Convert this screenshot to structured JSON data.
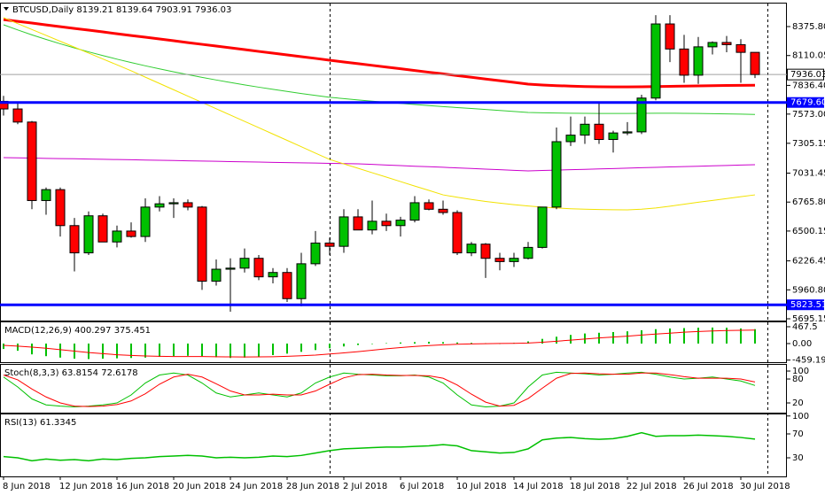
{
  "chart_data": [
    {
      "type": "candlestick",
      "title": "BTCUSD,Daily",
      "categories": [
        "8 Jun 2018",
        null,
        null,
        null,
        "12 Jun 2018",
        null,
        null,
        null,
        "16 Jun 2018",
        null,
        null,
        null,
        "20 Jun 2018",
        null,
        null,
        null,
        "24 Jun 2018",
        null,
        null,
        null,
        "28 Jun 2018",
        null,
        null,
        null,
        "2 Jul 2018",
        null,
        null,
        null,
        "6 Jul 2018",
        null,
        null,
        null,
        "10 Jul 2018",
        null,
        null,
        null,
        "14 Jul 2018",
        null,
        null,
        null,
        "18 Jul 2018",
        null,
        null,
        null,
        "22 Jul 2018",
        null,
        null,
        null,
        "26 Jul 2018",
        null,
        null,
        null,
        "30 Jul 2018",
        null
      ],
      "ohlc": {
        "open": [
          7690,
          7620,
          7500,
          6780,
          6880,
          6550,
          6300,
          6640,
          6400,
          6500,
          6450,
          6720,
          6750,
          6760,
          6720,
          6040,
          6150,
          6160,
          6250,
          6080,
          6120,
          5880,
          6200,
          6390,
          6360,
          6630,
          6510,
          6590,
          6550,
          6600,
          6760,
          6700,
          6670,
          6300,
          6380,
          6250,
          6220,
          6250,
          6350,
          6720,
          7320,
          7380,
          7480,
          7340,
          7400,
          7410,
          7720,
          8400,
          8170,
          7930,
          8190,
          8230,
          8210,
          8139.21
        ],
        "high": [
          7740,
          7690,
          7510,
          6900,
          6900,
          6620,
          6680,
          6660,
          6550,
          6580,
          6800,
          6820,
          6800,
          6790,
          6730,
          6240,
          6250,
          6340,
          6280,
          6160,
          6160,
          6300,
          6500,
          6440,
          6700,
          6700,
          6780,
          6660,
          6630,
          6820,
          6790,
          6780,
          6690,
          6400,
          6390,
          6300,
          6300,
          6400,
          6700,
          7450,
          7550,
          7550,
          7670,
          7420,
          7500,
          7750,
          8480,
          8480,
          8300,
          8280,
          8240,
          8290,
          8260,
          8139.64
        ],
        "low": [
          7560,
          7480,
          6700,
          6650,
          6450,
          6130,
          6280,
          6400,
          6350,
          6440,
          6400,
          6680,
          6620,
          6690,
          5960,
          6000,
          5760,
          6120,
          6050,
          6020,
          5850,
          5810,
          6180,
          6280,
          6300,
          6560,
          6470,
          6500,
          6450,
          6580,
          6690,
          6650,
          6280,
          6270,
          6070,
          6140,
          6170,
          6240,
          6340,
          6700,
          7280,
          7300,
          7300,
          7220,
          7380,
          7390,
          7700,
          8050,
          7860,
          7850,
          8120,
          8140,
          7860,
          7903.91
        ],
        "close": [
          7620,
          7500,
          6780,
          6880,
          6550,
          6300,
          6640,
          6400,
          6500,
          6450,
          6720,
          6750,
          6760,
          6720,
          6040,
          6150,
          6160,
          6250,
          6080,
          6120,
          5880,
          6200,
          6390,
          6360,
          6630,
          6510,
          6590,
          6550,
          6600,
          6760,
          6700,
          6670,
          6300,
          6380,
          6250,
          6220,
          6250,
          6350,
          6720,
          7320,
          7380,
          7480,
          7340,
          7400,
          7410,
          7720,
          8400,
          8170,
          7930,
          8190,
          8230,
          8210,
          8139.21,
          7936.03
        ]
      },
      "up_color": "#00c000",
      "down_color": "#ff0000",
      "lines": [
        {
          "color": "#ff0000",
          "values": [
            8440,
            8424,
            8408,
            8391,
            8375,
            8359,
            8343,
            8327,
            8310,
            8294,
            8278,
            8262,
            8246,
            8229,
            8213,
            8197,
            8181,
            8165,
            8148,
            8132,
            8116,
            8100,
            8084,
            8067,
            8051,
            8036,
            8020,
            8004,
            7989,
            7973,
            7957,
            7942,
            7926,
            7911,
            7895,
            7879,
            7864,
            7848,
            7840,
            7834,
            7830,
            7826,
            7824,
            7823,
            7823,
            7824,
            7826,
            7828,
            7830,
            7832,
            7834,
            7836,
            7837,
            7838
          ]
        },
        {
          "color": "#32cd32",
          "values": [
            8392,
            8345,
            8300,
            8258,
            8218,
            8180,
            8144,
            8110,
            8077,
            8046,
            8016,
            7988,
            7961,
            7935,
            7910,
            7886,
            7863,
            7841,
            7820,
            7800,
            7781,
            7762,
            7744,
            7727,
            7715,
            7703,
            7692,
            7681,
            7671,
            7661,
            7651,
            7642,
            7633,
            7624,
            7615,
            7606,
            7597,
            7588,
            7585,
            7583,
            7581,
            7580,
            7579,
            7579,
            7579,
            7580,
            7581,
            7581,
            7580,
            7579,
            7577,
            7575,
            7573,
            7570
          ]
        },
        {
          "color": "#cc00cc",
          "values": [
            7174,
            7172,
            7170,
            7167,
            7165,
            7163,
            7160,
            7158,
            7156,
            7154,
            7151,
            7149,
            7147,
            7144,
            7142,
            7140,
            7137,
            7135,
            7133,
            7130,
            7128,
            7126,
            7124,
            7121,
            7119,
            7117,
            7112,
            7106,
            7101,
            7095,
            7090,
            7085,
            7079,
            7074,
            7068,
            7063,
            7057,
            7052,
            7056,
            7059,
            7063,
            7066,
            7070,
            7073,
            7077,
            7081,
            7084,
            7088,
            7091,
            7095,
            7099,
            7102,
            7106,
            7109
          ]
        },
        {
          "color": "#f2e200",
          "values": [
            8457,
            8403,
            8349,
            8295,
            8241,
            8187,
            8133,
            8079,
            8025,
            7970,
            7912,
            7854,
            7796,
            7738,
            7680,
            7622,
            7564,
            7506,
            7448,
            7390,
            7332,
            7274,
            7215,
            7157,
            7116,
            7076,
            7035,
            6995,
            6954,
            6913,
            6873,
            6832,
            6810,
            6790,
            6772,
            6756,
            6742,
            6730,
            6720,
            6712,
            6705,
            6700,
            6697,
            6695,
            6694,
            6700,
            6712,
            6728,
            6746,
            6764,
            6781,
            6798,
            6815,
            6832
          ]
        }
      ],
      "levels": [
        {
          "value": 7679.6,
          "label": "7679.60"
        },
        5823.51
      ],
      "level_color": "#0000ff",
      "ylim": [
        5679,
        8579
      ],
      "yticks": [
        {
          "value": 8375.8,
          "label": "8375.80"
        },
        8110.05,
        {
          "value": 7836.4,
          "label": "7836.40"
        },
        {
          "value": 7573,
          "label": "7573.00"
        },
        7305.15,
        7031.45,
        {
          "value": 6765.8,
          "label": "6765.80"
        },
        6500.15,
        6226.45,
        {
          "value": 5960.8,
          "label": "5960.80"
        },
        5695.15
      ]
    },
    {
      "type": "macd",
      "title": "MACD(12,26,9)",
      "series": [
        {
          "color": "#00c000",
          "values": [
            -150,
            -200,
            -300,
            -350,
            -390,
            -420,
            -430,
            -420,
            -410,
            -400,
            -390,
            -370,
            -350,
            -340,
            -350,
            -380,
            -400,
            -390,
            -360,
            -320,
            -280,
            -230,
            -180,
            -130,
            -80,
            -40,
            -10,
            10,
            30,
            40,
            50,
            40,
            30,
            20,
            10,
            0,
            20,
            60,
            130,
            190,
            240,
            280,
            300,
            320,
            340,
            370,
            400,
            420,
            430,
            440,
            445,
            440,
            420,
            400.297
          ]
        },
        {
          "color": "#ff0000",
          "values": [
            -50,
            -70,
            -100,
            -130,
            -170,
            -210,
            -250,
            -280,
            -310,
            -330,
            -345,
            -355,
            -360,
            -360,
            -360,
            -365,
            -370,
            -372,
            -370,
            -365,
            -355,
            -340,
            -320,
            -290,
            -260,
            -225,
            -185,
            -145,
            -110,
            -80,
            -55,
            -35,
            -20,
            -10,
            -2,
            2,
            5,
            15,
            35,
            65,
            95,
            125,
            155,
            180,
            205,
            235,
            265,
            290,
            315,
            335,
            350,
            362,
            370,
            375.451
          ]
        }
      ],
      "ylim": [
        -517,
        590
      ],
      "yticks": [
        467.5,
        {
          "value": 0,
          "label": "0.00"
        },
        -459.194
      ]
    },
    {
      "type": "line",
      "title": "Stoch(8,3,3)",
      "series": [
        {
          "color": "#00c000",
          "values": [
            85,
            60,
            30,
            15,
            12,
            10,
            12,
            15,
            20,
            40,
            70,
            90,
            95,
            90,
            70,
            45,
            35,
            40,
            45,
            40,
            35,
            45,
            70,
            85,
            95,
            92,
            90,
            88,
            88,
            90,
            85,
            70,
            40,
            15,
            10,
            12,
            20,
            60,
            90,
            97,
            95,
            93,
            90,
            92,
            95,
            97,
            92,
            85,
            80,
            82,
            85,
            80,
            75,
            63.8154
          ]
        },
        {
          "color": "#ff0000",
          "values": [
            90,
            78,
            55,
            35,
            20,
            12,
            11,
            12,
            16,
            25,
            43,
            67,
            85,
            92,
            85,
            68,
            50,
            40,
            40,
            42,
            40,
            40,
            50,
            67,
            83,
            91,
            92,
            90,
            89,
            89,
            88,
            82,
            65,
            42,
            22,
            12,
            14,
            31,
            57,
            82,
            94,
            95,
            93,
            92,
            92,
            95,
            95,
            91,
            86,
            82,
            82,
            82,
            80,
            72.6178
          ]
        }
      ],
      "ylim": [
        -4.4,
        115.6
      ],
      "yticks": [
        100,
        80,
        20
      ]
    },
    {
      "type": "line",
      "title": "RSI(13)",
      "series": [
        {
          "color": "#00c000",
          "values": [
            32,
            30,
            25,
            28,
            26,
            27,
            25,
            28,
            27,
            29,
            30,
            32,
            33,
            34,
            33,
            30,
            31,
            30,
            31,
            33,
            32,
            34,
            38,
            42,
            45,
            46,
            47,
            48,
            48,
            49,
            50,
            52,
            50,
            42,
            40,
            38,
            39,
            45,
            60,
            63,
            64,
            62,
            61,
            62,
            66,
            72,
            66,
            67,
            67,
            68,
            67,
            66,
            64,
            61.3345
          ]
        }
      ],
      "ylim": [
        -1.1,
        102.6
      ],
      "yticks": [
        100,
        70,
        30
      ]
    }
  ]
}
